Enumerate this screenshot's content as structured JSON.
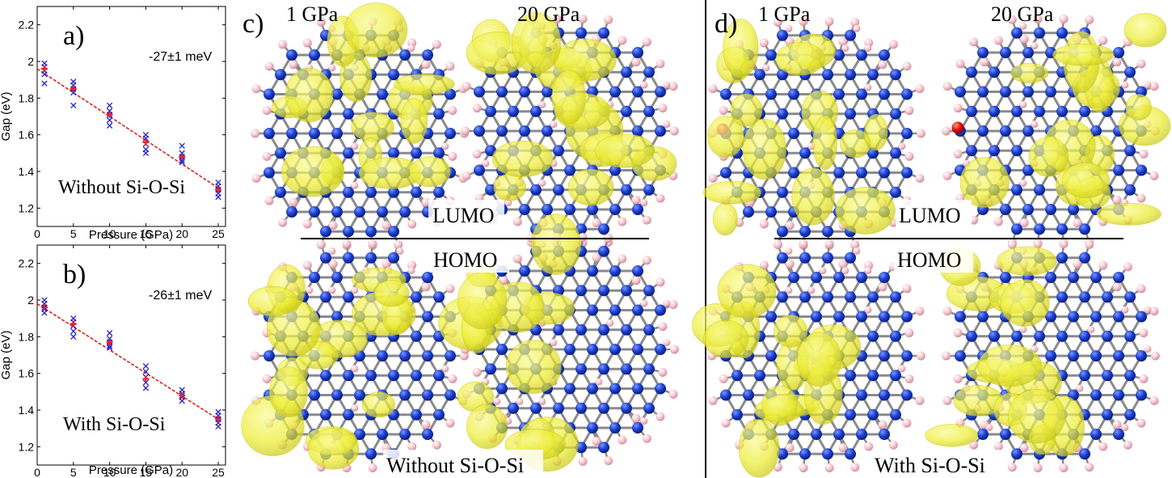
{
  "colors": {
    "si_atom": "#1c3fd0",
    "h_atom": "#f4c4cc",
    "o_atom": "#e01010",
    "bond": "#8a8a8a",
    "orbital": "#f1f03a",
    "fit_line": "#e02020",
    "mean_marker": "#ff2020",
    "sample_marker": "#2222cc"
  },
  "chart_data": [
    {
      "type": "scatter",
      "panel_label": "a)",
      "slope_label": "-27±1 meV",
      "inset_text": "Without Si-O-Si",
      "xlabel": "Pressure (GPa)",
      "ylabel": "Gap (eV)",
      "xlim": [
        0,
        26
      ],
      "ylim": [
        1.1,
        2.3
      ],
      "xticks": [
        0,
        5,
        10,
        15,
        20,
        25
      ],
      "yticks": [
        1.2,
        1.4,
        1.6,
        1.8,
        2.0,
        2.2
      ],
      "ytick_labels": [
        "1.2",
        "1.4",
        "1.6",
        "1.8",
        "2",
        "2.2"
      ],
      "series": [
        {
          "marker": "x",
          "points": [
            [
              1,
              1.99
            ],
            [
              1,
              1.97
            ],
            [
              1,
              1.95
            ],
            [
              1,
              1.93
            ],
            [
              1,
              1.88
            ],
            [
              5,
              1.89
            ],
            [
              5,
              1.87
            ],
            [
              5,
              1.85
            ],
            [
              5,
              1.83
            ],
            [
              5,
              1.76
            ],
            [
              10,
              1.76
            ],
            [
              10,
              1.73
            ],
            [
              10,
              1.71
            ],
            [
              10,
              1.68
            ],
            [
              10,
              1.65
            ],
            [
              15,
              1.6
            ],
            [
              15,
              1.58
            ],
            [
              15,
              1.55
            ],
            [
              15,
              1.52
            ],
            [
              15,
              1.5
            ],
            [
              20,
              1.54
            ],
            [
              20,
              1.5
            ],
            [
              20,
              1.48
            ],
            [
              20,
              1.46
            ],
            [
              20,
              1.45
            ],
            [
              25,
              1.34
            ],
            [
              25,
              1.32
            ],
            [
              25,
              1.3
            ],
            [
              25,
              1.28
            ],
            [
              25,
              1.26
            ]
          ]
        },
        {
          "marker": "plus",
          "points": [
            [
              1,
              1.96
            ],
            [
              5,
              1.85
            ],
            [
              10,
              1.71
            ],
            [
              15,
              1.56
            ],
            [
              20,
              1.48
            ],
            [
              25,
              1.3
            ]
          ]
        }
      ],
      "fit": {
        "x": [
          0,
          25
        ],
        "y": [
          1.96,
          1.31
        ]
      }
    },
    {
      "type": "scatter",
      "panel_label": "b)",
      "slope_label": "-26±1 meV",
      "inset_text": "With Si-O-Si",
      "xlabel": "Pressure (GPa)",
      "ylabel": "Gap (eV)",
      "xlim": [
        0,
        26
      ],
      "ylim": [
        1.1,
        2.3
      ],
      "xticks": [
        0,
        5,
        10,
        15,
        20,
        25
      ],
      "yticks": [
        1.2,
        1.4,
        1.6,
        1.8,
        2.0,
        2.2
      ],
      "ytick_labels": [
        "1.2",
        "1.4",
        "1.6",
        "1.8",
        "2",
        "2.2"
      ],
      "series": [
        {
          "marker": "x",
          "points": [
            [
              1,
              2.0
            ],
            [
              1,
              1.98
            ],
            [
              1,
              1.96
            ],
            [
              1,
              1.95
            ],
            [
              1,
              1.93
            ],
            [
              5,
              1.9
            ],
            [
              5,
              1.88
            ],
            [
              5,
              1.86
            ],
            [
              5,
              1.83
            ],
            [
              5,
              1.8
            ],
            [
              10,
              1.82
            ],
            [
              10,
              1.79
            ],
            [
              10,
              1.77
            ],
            [
              10,
              1.75
            ],
            [
              10,
              1.74
            ],
            [
              15,
              1.64
            ],
            [
              15,
              1.61
            ],
            [
              15,
              1.58
            ],
            [
              15,
              1.55
            ],
            [
              15,
              1.52
            ],
            [
              20,
              1.51
            ],
            [
              20,
              1.49
            ],
            [
              20,
              1.48
            ],
            [
              20,
              1.47
            ],
            [
              20,
              1.45
            ],
            [
              25,
              1.39
            ],
            [
              25,
              1.37
            ],
            [
              25,
              1.35
            ],
            [
              25,
              1.33
            ],
            [
              25,
              1.31
            ]
          ]
        },
        {
          "marker": "plus",
          "points": [
            [
              1,
              1.96
            ],
            [
              5,
              1.87
            ],
            [
              10,
              1.77
            ],
            [
              15,
              1.57
            ],
            [
              20,
              1.48
            ],
            [
              25,
              1.35
            ]
          ]
        }
      ],
      "fit": {
        "x": [
          0,
          25
        ],
        "y": [
          1.98,
          1.35
        ]
      }
    }
  ],
  "panel_c": {
    "label": "c)",
    "col_left": "1 GPa",
    "col_right": "20 GPa",
    "lumo": "LUMO",
    "homo": "HOMO",
    "caption": "Without Si-O-Si"
  },
  "panel_d": {
    "label": "d)",
    "col_left": "1 GPa",
    "col_right": "20 GPa",
    "lumo": "LUMO",
    "homo": "HOMO",
    "caption": "With Si-O-Si"
  },
  "orbital_blobs": {
    "c_lumo_1": {
      "center": [
        0.5,
        0.42
      ],
      "spread": [
        0.34,
        0.44
      ],
      "count": 14,
      "seed": 11
    },
    "c_lumo_20": {
      "center": [
        0.52,
        0.5
      ],
      "spread": [
        0.4,
        0.46
      ],
      "count": 16,
      "seed": 23
    },
    "c_homo_1": {
      "center": [
        0.44,
        0.5
      ],
      "spread": [
        0.36,
        0.46
      ],
      "count": 15,
      "seed": 37
    },
    "c_homo_20": {
      "center": [
        0.24,
        0.48
      ],
      "spread": [
        0.22,
        0.5
      ],
      "count": 13,
      "seed": 41
    },
    "d_lumo_1": {
      "center": [
        0.46,
        0.48
      ],
      "spread": [
        0.4,
        0.46
      ],
      "count": 15,
      "seed": 53
    },
    "d_lumo_20": {
      "center": [
        0.58,
        0.46
      ],
      "spread": [
        0.4,
        0.46
      ],
      "count": 16,
      "seed": 67
    },
    "d_homo_1": {
      "center": [
        0.3,
        0.5
      ],
      "spread": [
        0.28,
        0.46
      ],
      "count": 14,
      "seed": 71
    },
    "d_homo_20": {
      "center": [
        0.3,
        0.5
      ],
      "spread": [
        0.28,
        0.46
      ],
      "count": 14,
      "seed": 83
    }
  }
}
